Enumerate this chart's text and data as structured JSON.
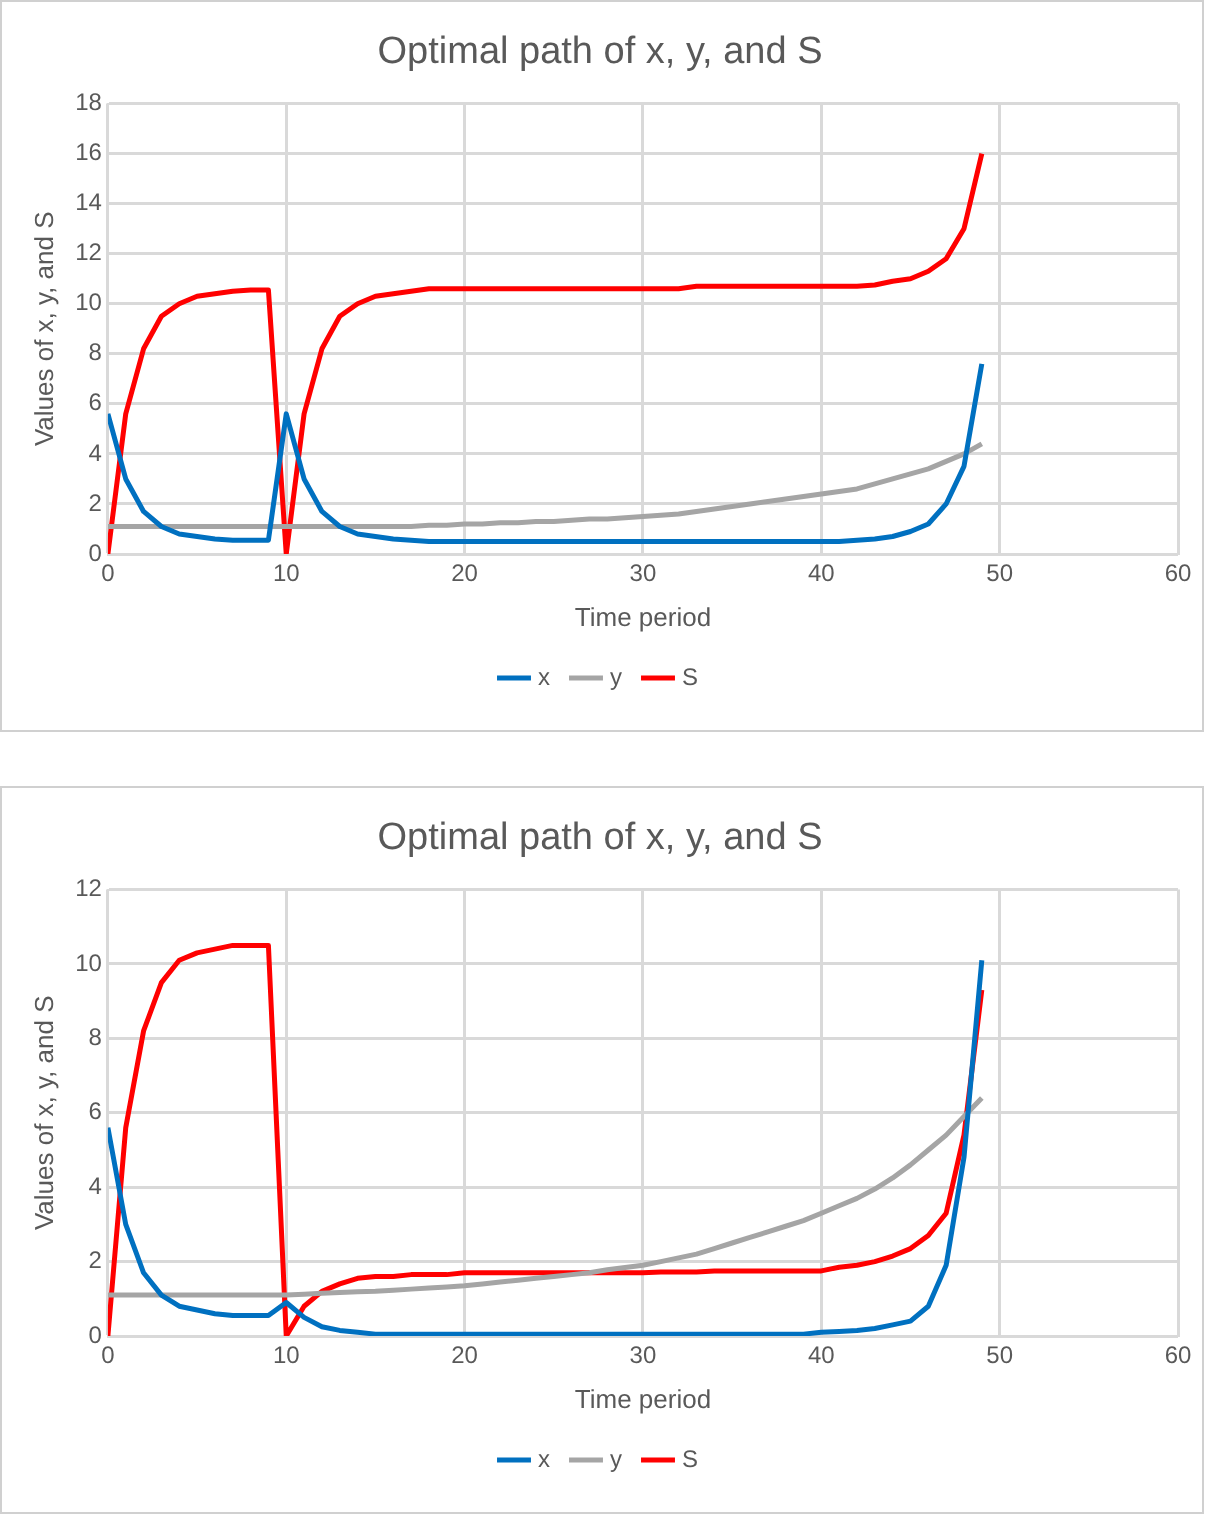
{
  "chart_data": [
    {
      "type": "line",
      "title": "Optimal path of x, y, and S",
      "xlabel": "Time period",
      "ylabel": "Values of x, y, and S",
      "x": [
        0,
        1,
        2,
        3,
        4,
        5,
        6,
        7,
        8,
        9,
        10,
        11,
        12,
        13,
        14,
        15,
        16,
        17,
        18,
        19,
        20,
        21,
        22,
        23,
        24,
        25,
        26,
        27,
        28,
        29,
        30,
        31,
        32,
        33,
        34,
        35,
        36,
        37,
        38,
        39,
        40,
        41,
        42,
        43,
        44,
        45,
        46,
        47,
        48,
        49
      ],
      "xlim": [
        0,
        60
      ],
      "xticks": [
        0,
        10,
        20,
        30,
        40,
        50,
        60
      ],
      "ylim": [
        0,
        18
      ],
      "yticks": [
        0,
        2,
        4,
        6,
        8,
        10,
        12,
        14,
        16,
        18
      ],
      "grid": true,
      "legend": "bottom",
      "marker": "none",
      "line_style": "solid",
      "series": [
        {
          "name": "x",
          "color": "#0070c0",
          "values": [
            5.6,
            3.0,
            1.7,
            1.1,
            0.8,
            0.7,
            0.6,
            0.55,
            0.55,
            0.55,
            5.6,
            3.0,
            1.7,
            1.1,
            0.8,
            0.7,
            0.6,
            0.55,
            0.5,
            0.5,
            0.5,
            0.5,
            0.5,
            0.5,
            0.5,
            0.5,
            0.5,
            0.5,
            0.5,
            0.5,
            0.5,
            0.5,
            0.5,
            0.5,
            0.5,
            0.5,
            0.5,
            0.5,
            0.5,
            0.5,
            0.5,
            0.5,
            0.55,
            0.6,
            0.7,
            0.9,
            1.2,
            2.0,
            3.5,
            7.6
          ]
        },
        {
          "name": "y",
          "color": "#a5a5a5",
          "values": [
            1.1,
            1.1,
            1.1,
            1.1,
            1.1,
            1.1,
            1.1,
            1.1,
            1.1,
            1.1,
            1.1,
            1.1,
            1.1,
            1.1,
            1.1,
            1.1,
            1.1,
            1.1,
            1.15,
            1.15,
            1.2,
            1.2,
            1.25,
            1.25,
            1.3,
            1.3,
            1.35,
            1.4,
            1.4,
            1.45,
            1.5,
            1.55,
            1.6,
            1.7,
            1.8,
            1.9,
            2.0,
            2.1,
            2.2,
            2.3,
            2.4,
            2.5,
            2.6,
            2.8,
            3.0,
            3.2,
            3.4,
            3.7,
            4.0,
            4.4
          ]
        },
        {
          "name": "S",
          "color": "#ff0000",
          "values": [
            0,
            5.6,
            8.2,
            9.5,
            10.0,
            10.3,
            10.4,
            10.5,
            10.55,
            10.55,
            0,
            5.6,
            8.2,
            9.5,
            10.0,
            10.3,
            10.4,
            10.5,
            10.6,
            10.6,
            10.6,
            10.6,
            10.6,
            10.6,
            10.6,
            10.6,
            10.6,
            10.6,
            10.6,
            10.6,
            10.6,
            10.6,
            10.6,
            10.7,
            10.7,
            10.7,
            10.7,
            10.7,
            10.7,
            10.7,
            10.7,
            10.7,
            10.7,
            10.75,
            10.9,
            11.0,
            11.3,
            11.8,
            13.0,
            16.0
          ]
        }
      ]
    },
    {
      "type": "line",
      "title": "Optimal path of x, y, and S",
      "xlabel": "Time period",
      "ylabel": "Values of x, y, and S",
      "x": [
        0,
        1,
        2,
        3,
        4,
        5,
        6,
        7,
        8,
        9,
        10,
        11,
        12,
        13,
        14,
        15,
        16,
        17,
        18,
        19,
        20,
        21,
        22,
        23,
        24,
        25,
        26,
        27,
        28,
        29,
        30,
        31,
        32,
        33,
        34,
        35,
        36,
        37,
        38,
        39,
        40,
        41,
        42,
        43,
        44,
        45,
        46,
        47,
        48,
        49
      ],
      "xlim": [
        0,
        60
      ],
      "xticks": [
        0,
        10,
        20,
        30,
        40,
        50,
        60
      ],
      "ylim": [
        0,
        12
      ],
      "yticks": [
        0,
        2,
        4,
        6,
        8,
        10,
        12
      ],
      "grid": true,
      "legend": "bottom",
      "marker": "none",
      "line_style": "solid",
      "series": [
        {
          "name": "x",
          "color": "#0070c0",
          "values": [
            5.6,
            3.0,
            1.7,
            1.1,
            0.8,
            0.7,
            0.6,
            0.55,
            0.55,
            0.55,
            0.9,
            0.5,
            0.25,
            0.15,
            0.1,
            0.05,
            0.05,
            0.05,
            0.05,
            0.05,
            0.05,
            0.05,
            0.05,
            0.05,
            0.05,
            0.05,
            0.05,
            0.05,
            0.05,
            0.05,
            0.05,
            0.05,
            0.05,
            0.05,
            0.05,
            0.05,
            0.05,
            0.05,
            0.05,
            0.05,
            0.1,
            0.12,
            0.15,
            0.2,
            0.3,
            0.4,
            0.8,
            1.9,
            4.8,
            10.1
          ]
        },
        {
          "name": "y",
          "color": "#a5a5a5",
          "values": [
            1.1,
            1.1,
            1.1,
            1.1,
            1.1,
            1.1,
            1.1,
            1.1,
            1.1,
            1.1,
            1.1,
            1.12,
            1.15,
            1.17,
            1.19,
            1.2,
            1.23,
            1.26,
            1.29,
            1.32,
            1.35,
            1.4,
            1.45,
            1.5,
            1.55,
            1.6,
            1.65,
            1.7,
            1.78,
            1.84,
            1.9,
            2.0,
            2.1,
            2.2,
            2.35,
            2.5,
            2.65,
            2.8,
            2.95,
            3.1,
            3.3,
            3.5,
            3.7,
            3.95,
            4.25,
            4.6,
            5.0,
            5.4,
            5.9,
            6.4
          ]
        },
        {
          "name": "S",
          "color": "#ff0000",
          "values": [
            0,
            5.6,
            8.2,
            9.5,
            10.1,
            10.3,
            10.4,
            10.5,
            10.5,
            10.5,
            0,
            0.8,
            1.2,
            1.4,
            1.55,
            1.6,
            1.6,
            1.65,
            1.65,
            1.65,
            1.7,
            1.7,
            1.7,
            1.7,
            1.7,
            1.7,
            1.7,
            1.7,
            1.7,
            1.7,
            1.7,
            1.72,
            1.72,
            1.72,
            1.75,
            1.75,
            1.75,
            1.75,
            1.75,
            1.75,
            1.75,
            1.85,
            1.9,
            2.0,
            2.15,
            2.35,
            2.7,
            3.3,
            5.4,
            9.3
          ]
        }
      ]
    }
  ]
}
